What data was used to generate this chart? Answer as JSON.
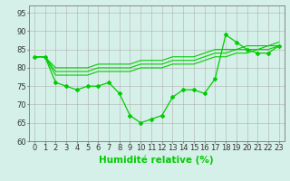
{
  "x": [
    0,
    1,
    2,
    3,
    4,
    5,
    6,
    7,
    8,
    9,
    10,
    11,
    12,
    13,
    14,
    15,
    16,
    17,
    18,
    19,
    20,
    21,
    22,
    23
  ],
  "line_main": [
    83,
    83,
    76,
    75,
    74,
    75,
    75,
    76,
    73,
    67,
    65,
    66,
    67,
    72,
    74,
    74,
    73,
    77,
    89,
    87,
    85,
    84,
    84,
    86
  ],
  "line_trend1": [
    83,
    83,
    78,
    78,
    78,
    78,
    79,
    79,
    79,
    79,
    80,
    80,
    80,
    81,
    81,
    81,
    82,
    83,
    83,
    84,
    84,
    85,
    85,
    86
  ],
  "line_trend2": [
    83,
    83,
    79,
    79,
    79,
    79,
    80,
    80,
    80,
    80,
    81,
    81,
    81,
    82,
    82,
    82,
    83,
    84,
    84,
    85,
    85,
    85,
    86,
    86
  ],
  "line_trend3": [
    83,
    83,
    80,
    80,
    80,
    80,
    81,
    81,
    81,
    81,
    82,
    82,
    82,
    83,
    83,
    83,
    84,
    85,
    85,
    85,
    86,
    86,
    86,
    87
  ],
  "color": "#00cc00",
  "bg_color": "#d5f0e8",
  "grid_color": "#b0b0b0",
  "xlim": [
    -0.5,
    23.5
  ],
  "ylim": [
    60,
    97
  ],
  "yticks": [
    60,
    65,
    70,
    75,
    80,
    85,
    90,
    95
  ],
  "xticks": [
    0,
    1,
    2,
    3,
    4,
    5,
    6,
    7,
    8,
    9,
    10,
    11,
    12,
    13,
    14,
    15,
    16,
    17,
    18,
    19,
    20,
    21,
    22,
    23
  ],
  "xlabel": "Humidité relative (%)",
  "xlabel_fontsize": 7.5,
  "tick_fontsize": 6.0
}
